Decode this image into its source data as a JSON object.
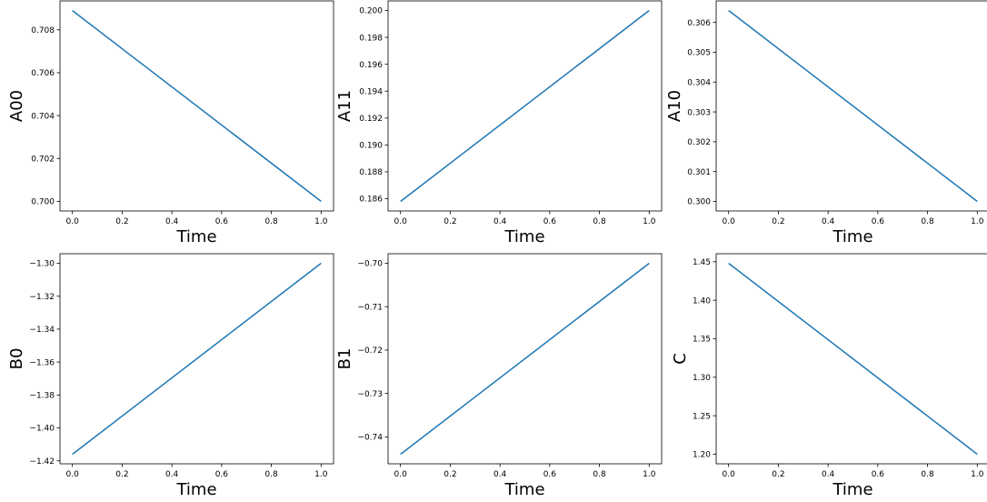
{
  "chart_data": [
    {
      "type": "line",
      "xlabel": "Time",
      "ylabel": "A00",
      "x": [
        0.0,
        1.0
      ],
      "series": [
        {
          "values": [
            0.7089,
            0.7
          ]
        }
      ],
      "xticks": [
        "0.0",
        "0.2",
        "0.4",
        "0.6",
        "0.8",
        "1.0"
      ],
      "yticks": [
        "0.700",
        "0.702",
        "0.704",
        "0.706",
        "0.708"
      ],
      "xlim": [
        -0.05,
        1.05
      ],
      "ylim": [
        0.69955,
        0.70935
      ],
      "grid": false,
      "color": "#1f77b4"
    },
    {
      "type": "line",
      "xlabel": "Time",
      "ylabel": "A11",
      "x": [
        0.0,
        1.0
      ],
      "series": [
        {
          "values": [
            0.1858,
            0.2
          ]
        }
      ],
      "xticks": [
        "0.0",
        "0.2",
        "0.4",
        "0.6",
        "0.8",
        "1.0"
      ],
      "yticks": [
        "0.186",
        "0.188",
        "0.190",
        "0.192",
        "0.194",
        "0.196",
        "0.198",
        "0.200"
      ],
      "xlim": [
        -0.05,
        1.05
      ],
      "ylim": [
        0.18509,
        0.20071
      ],
      "grid": false,
      "color": "#1f77b4"
    },
    {
      "type": "line",
      "xlabel": "Time",
      "ylabel": "A10",
      "x": [
        0.0,
        1.0
      ],
      "series": [
        {
          "values": [
            0.3064,
            0.3
          ]
        }
      ],
      "xticks": [
        "0.0",
        "0.2",
        "0.4",
        "0.6",
        "0.8",
        "1.0"
      ],
      "yticks": [
        "0.300",
        "0.301",
        "0.302",
        "0.303",
        "0.304",
        "0.305",
        "0.306"
      ],
      "xlim": [
        -0.05,
        1.05
      ],
      "ylim": [
        0.29968,
        0.30672
      ],
      "grid": false,
      "color": "#1f77b4"
    },
    {
      "type": "line",
      "xlabel": "Time",
      "ylabel": "B0",
      "x": [
        0.0,
        1.0
      ],
      "series": [
        {
          "values": [
            -1.416,
            -1.3
          ]
        }
      ],
      "xticks": [
        "0.0",
        "0.2",
        "0.4",
        "0.6",
        "0.8",
        "1.0"
      ],
      "yticks": [
        "−1.42",
        "−1.40",
        "−1.38",
        "−1.36",
        "−1.34",
        "−1.32",
        "−1.30"
      ],
      "ytick_values": [
        -1.42,
        -1.4,
        -1.38,
        -1.36,
        -1.34,
        -1.32,
        -1.3
      ],
      "xlim": [
        -0.05,
        1.05
      ],
      "ylim": [
        -1.4218,
        -1.2942
      ],
      "grid": false,
      "color": "#1f77b4"
    },
    {
      "type": "line",
      "xlabel": "Time",
      "ylabel": "B1",
      "x": [
        0.0,
        1.0
      ],
      "series": [
        {
          "values": [
            -0.744,
            -0.7
          ]
        }
      ],
      "xticks": [
        "0.0",
        "0.2",
        "0.4",
        "0.6",
        "0.8",
        "1.0"
      ],
      "yticks": [
        "−0.74",
        "−0.73",
        "−0.72",
        "−0.71",
        "−0.70"
      ],
      "ytick_values": [
        -0.74,
        -0.73,
        -0.72,
        -0.71,
        -0.7
      ],
      "xlim": [
        -0.05,
        1.05
      ],
      "ylim": [
        -0.7462,
        -0.6978
      ],
      "grid": false,
      "color": "#1f77b4"
    },
    {
      "type": "line",
      "xlabel": "Time",
      "ylabel": "C",
      "x": [
        0.0,
        1.0
      ],
      "series": [
        {
          "values": [
            1.448,
            1.2
          ]
        }
      ],
      "xticks": [
        "0.0",
        "0.2",
        "0.4",
        "0.6",
        "0.8",
        "1.0"
      ],
      "yticks": [
        "1.20",
        "1.25",
        "1.30",
        "1.35",
        "1.40",
        "1.45"
      ],
      "xlim": [
        -0.05,
        1.05
      ],
      "ylim": [
        1.1876,
        1.4604
      ],
      "grid": false,
      "color": "#1f77b4"
    }
  ]
}
